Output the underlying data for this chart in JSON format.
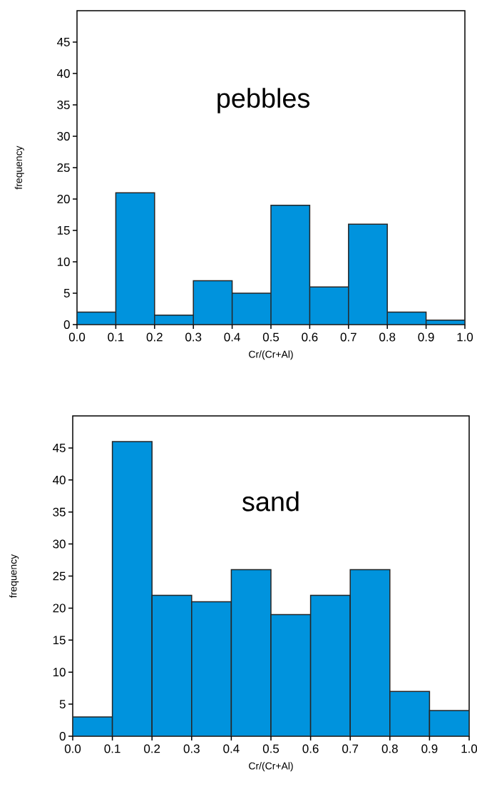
{
  "chart_data": [
    {
      "type": "histogram",
      "title": "pebbles",
      "xlabel": "Cr/(Cr+Al)",
      "ylabel": "frequency",
      "bins": [
        0.0,
        0.1,
        0.2,
        0.3,
        0.4,
        0.5,
        0.6,
        0.7,
        0.8,
        0.9,
        1.0
      ],
      "values": [
        2,
        21,
        1.5,
        7,
        5,
        19,
        6,
        16,
        2,
        0.7
      ],
      "color": "#0093dd",
      "xlim": [
        0,
        1
      ],
      "ylim": [
        0,
        50
      ],
      "xticks": [
        {
          "value": 0,
          "label": "0.0"
        },
        {
          "value": 0.1,
          "label": "0.1"
        },
        {
          "value": 0.2,
          "label": "0.2"
        },
        {
          "value": 0.3,
          "label": "0.3"
        },
        {
          "value": 0.4,
          "label": "0.4"
        },
        {
          "value": 0.5,
          "label": "0.5"
        },
        {
          "value": 0.6,
          "label": "0.6"
        },
        {
          "value": 0.7,
          "label": "0.7"
        },
        {
          "value": 0.8,
          "label": "0.8"
        },
        {
          "value": 0.9,
          "label": "0.9"
        },
        {
          "value": 1,
          "label": "1.0"
        }
      ],
      "yticks": [
        0,
        5,
        10,
        15,
        20,
        25,
        30,
        35,
        40,
        45
      ]
    },
    {
      "type": "histogram",
      "title": "sand",
      "xlabel": "Cr/(Cr+Al)",
      "ylabel": "frequency",
      "bins": [
        0.0,
        0.1,
        0.2,
        0.3,
        0.4,
        0.5,
        0.6,
        0.7,
        0.8,
        0.9,
        1.0
      ],
      "values": [
        3,
        46,
        22,
        21,
        26,
        19,
        22,
        26,
        7,
        4
      ],
      "color": "#0093dd",
      "xlim": [
        0,
        1
      ],
      "ylim": [
        0,
        50
      ],
      "xticks": [
        {
          "value": 0,
          "label": "0.0"
        },
        {
          "value": 0.1,
          "label": "0.1"
        },
        {
          "value": 0.2,
          "label": "0.2"
        },
        {
          "value": 0.3,
          "label": "0.3"
        },
        {
          "value": 0.4,
          "label": "0.4"
        },
        {
          "value": 0.5,
          "label": "0.5"
        },
        {
          "value": 0.6,
          "label": "0.6"
        },
        {
          "value": 0.7,
          "label": "0.7"
        },
        {
          "value": 0.8,
          "label": "0.8"
        },
        {
          "value": 0.9,
          "label": "0.9"
        },
        {
          "value": 1,
          "label": "1.0"
        }
      ],
      "yticks": [
        0,
        5,
        10,
        15,
        20,
        25,
        30,
        35,
        40,
        45
      ]
    }
  ]
}
